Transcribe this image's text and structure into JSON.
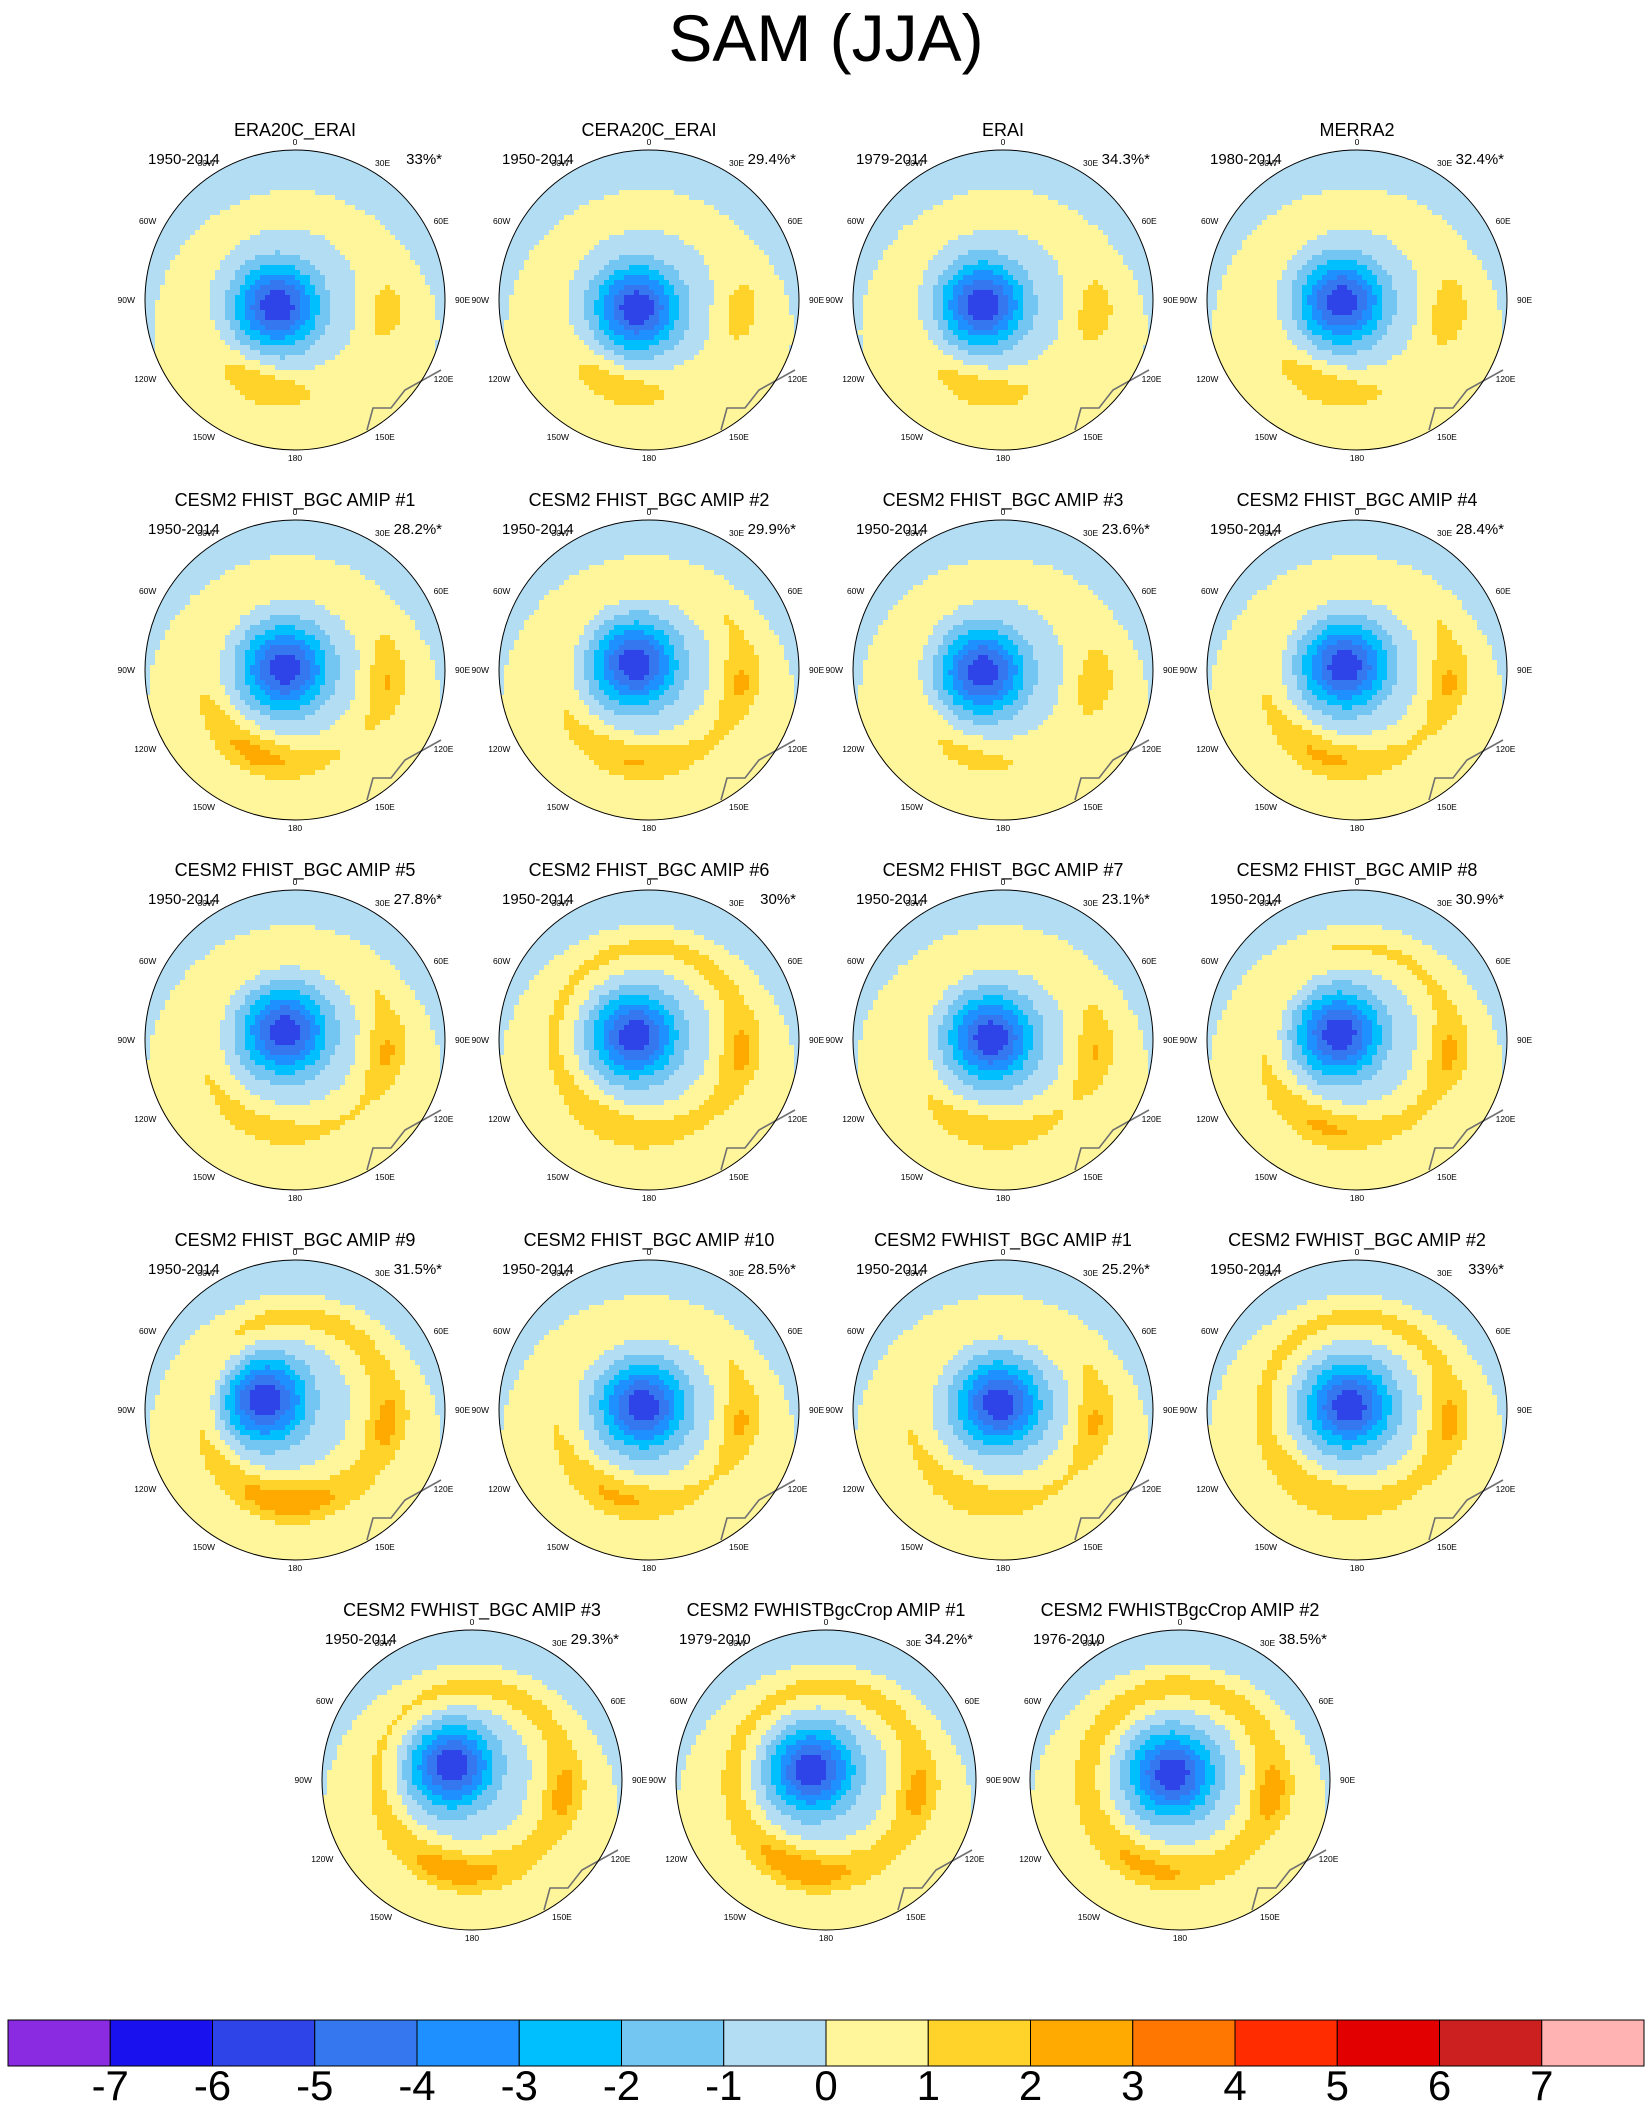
{
  "title": "SAM (JJA)",
  "lon_labels": {
    "top": "0",
    "t30e": "30E",
    "t60e": "60E",
    "e90": "90E",
    "e120": "120E",
    "e150": "150E",
    "bottom": "180",
    "w150": "150W",
    "w120": "120W",
    "w90": "90W",
    "t60w": "60W",
    "t30w": "30W"
  },
  "colors": {
    "land_outline": "#707070",
    "panel_border": "#000000",
    "levels": [
      "#8a2be2",
      "#1a12ee",
      "#2f44e8",
      "#3477ee",
      "#1e90ff",
      "#00bfff",
      "#73c6f2",
      "#b3ddf2",
      "#fff59a",
      "#ffd32a",
      "#ffaa00",
      "#ff7700",
      "#ff2c00",
      "#e30000",
      "#cc1f1f",
      "#ffb3b3"
    ]
  },
  "colorbar": {
    "labels": [
      "-7",
      "-6",
      "-5",
      "-4",
      "-3",
      "-2",
      "-1",
      "0",
      "1",
      "2",
      "3",
      "4",
      "5",
      "6",
      "7"
    ]
  },
  "panels": [
    {
      "title": "ERA20C_ERAI",
      "years": "1950-2014",
      "pct": "33%*",
      "shift": [
        -18,
        6
      ],
      "lobe": [
        0,
        1.0
      ],
      "ring": 0.35,
      "mode": 0
    },
    {
      "title": "CERA20C_ERAI",
      "years": "1950-2014",
      "pct": "29.4%*",
      "shift": [
        -12,
        8
      ],
      "lobe": [
        0,
        0.9
      ],
      "ring": 0.4,
      "mode": 0
    },
    {
      "title": "ERAI",
      "years": "1979-2014",
      "pct": "34.3%*",
      "shift": [
        -20,
        4
      ],
      "lobe": [
        5,
        0.8
      ],
      "ring": 0.5,
      "mode": 0
    },
    {
      "title": "MERRA2",
      "years": "1980-2014",
      "pct": "32.4%*",
      "shift": [
        -15,
        2
      ],
      "lobe": [
        0,
        0.8
      ],
      "ring": 0.6,
      "mode": 0
    },
    {
      "title": "CESM2 FHIST_BGC AMIP #1",
      "years": "1950-2014",
      "pct": "28.2%*",
      "shift": [
        -10,
        -2
      ],
      "lobe": [
        -5,
        1.0
      ],
      "ring": 0.9,
      "mode": 1
    },
    {
      "title": "CESM2 FHIST_BGC AMIP #2",
      "years": "1950-2014",
      "pct": "29.9%*",
      "shift": [
        -14,
        -6
      ],
      "lobe": [
        10,
        0.7
      ],
      "ring": 1.0,
      "mode": 1
    },
    {
      "title": "CESM2 FHIST_BGC AMIP #3",
      "years": "1950-2014",
      "pct": "23.6%*",
      "shift": [
        -20,
        2
      ],
      "lobe": [
        0,
        0.5
      ],
      "ring": 0.6,
      "mode": 1
    },
    {
      "title": "CESM2 FHIST_BGC AMIP #4",
      "years": "1950-2014",
      "pct": "28.4%*",
      "shift": [
        -12,
        -4
      ],
      "lobe": [
        0,
        0.8
      ],
      "ring": 1.0,
      "mode": 1
    },
    {
      "title": "CESM2 FHIST_BGC AMIP #5",
      "years": "1950-2014",
      "pct": "27.8%*",
      "shift": [
        -10,
        -8
      ],
      "lobe": [
        0,
        0.3
      ],
      "ring": 1.0,
      "mode": 2
    },
    {
      "title": "CESM2 FHIST_BGC AMIP #6",
      "years": "1950-2014",
      "pct": "30%*",
      "shift": [
        -14,
        -4
      ],
      "lobe": [
        0,
        0.4
      ],
      "ring": 1.2,
      "mode": 2
    },
    {
      "title": "CESM2 FHIST_BGC AMIP #7",
      "years": "1950-2014",
      "pct": "23.1%*",
      "shift": [
        -12,
        -2
      ],
      "lobe": [
        10,
        0.6
      ],
      "ring": 0.9,
      "mode": 2
    },
    {
      "title": "CESM2 FHIST_BGC AMIP #8",
      "years": "1950-2014",
      "pct": "30.9%*",
      "shift": [
        -18,
        -6
      ],
      "lobe": [
        0,
        0.7
      ],
      "ring": 1.1,
      "mode": 2
    },
    {
      "title": "CESM2 FHIST_BGC AMIP #9",
      "years": "1950-2014",
      "pct": "31.5%*",
      "shift": [
        -30,
        -10
      ],
      "lobe": [
        15,
        1.0
      ],
      "ring": 1.3,
      "mode": 3
    },
    {
      "title": "CESM2 FHIST_BGC AMIP #10",
      "years": "1950-2014",
      "pct": "28.5%*",
      "shift": [
        -6,
        -4
      ],
      "lobe": [
        0,
        0.8
      ],
      "ring": 1.0,
      "mode": 3
    },
    {
      "title": "CESM2 FWHIST_BGC AMIP #1",
      "years": "1950-2014",
      "pct": "25.2%*",
      "shift": [
        -4,
        -6
      ],
      "lobe": [
        0,
        0.5
      ],
      "ring": 1.0,
      "mode": 3
    },
    {
      "title": "CESM2 FWHIST_BGC AMIP #2",
      "years": "1950-2014",
      "pct": "33%*",
      "shift": [
        -8,
        -4
      ],
      "lobe": [
        0,
        0.5
      ],
      "ring": 1.2,
      "mode": 3
    },
    {
      "title": "CESM2 FWHIST_BGC AMIP #3",
      "years": "1950-2014",
      "pct": "29.3%*",
      "shift": [
        -20,
        -14
      ],
      "lobe": [
        10,
        0.9
      ],
      "ring": 1.3,
      "mode": 4
    },
    {
      "title": "CESM2 FWHISTBgcCrop AMIP #1",
      "years": "1979-2010",
      "pct": "34.2%*",
      "shift": [
        -14,
        -10
      ],
      "lobe": [
        5,
        1.0
      ],
      "ring": 1.3,
      "mode": 4
    },
    {
      "title": "CESM2 FWHISTBgcCrop AMIP #2",
      "years": "1976-2010",
      "pct": "38.5%*",
      "shift": [
        -8,
        -6
      ],
      "lobe": [
        0,
        0.6
      ],
      "ring": 1.4,
      "mode": 4
    }
  ]
}
